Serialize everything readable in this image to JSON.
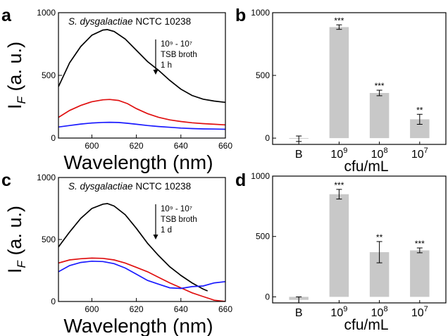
{
  "figure": {
    "panel_letters": [
      "a",
      "b",
      "c",
      "d"
    ]
  },
  "chart_data": [
    {
      "panel": "a",
      "type": "line",
      "title": "",
      "annotation_species": "S. dysgalactiae",
      "annotation_strain": "NCTC 10238",
      "legend_text": [
        "10⁹ - 10⁷",
        "TSB broth",
        "1 h"
      ],
      "xlabel": "Wavelength (nm)",
      "ylabel_main": "I",
      "ylabel_sub": "F",
      "ylabel_rest": " (a. u.)",
      "xlim": [
        585,
        660
      ],
      "ylim": [
        0,
        1000
      ],
      "xticks": [
        600,
        620,
        640,
        660
      ],
      "yticks": [
        0,
        500,
        1000
      ],
      "series": [
        {
          "color": "#000000",
          "x": [
            585,
            590,
            595,
            600,
            605,
            607,
            610,
            615,
            620,
            625,
            630,
            635,
            640,
            645,
            650,
            655,
            660
          ],
          "y": [
            410,
            600,
            730,
            820,
            862,
            865,
            850,
            790,
            700,
            610,
            540,
            460,
            390,
            340,
            310,
            295,
            285
          ]
        },
        {
          "color": "#e01010",
          "x": [
            585,
            590,
            595,
            600,
            605,
            608,
            612,
            616,
            620,
            625,
            630,
            635,
            640,
            645,
            650,
            655,
            660
          ],
          "y": [
            165,
            220,
            260,
            290,
            305,
            308,
            300,
            275,
            235,
            195,
            165,
            145,
            132,
            122,
            115,
            110,
            105
          ]
        },
        {
          "color": "#1a1aff",
          "x": [
            585,
            590,
            595,
            600,
            605,
            608,
            612,
            616,
            620,
            625,
            630,
            635,
            640,
            645,
            650,
            655,
            660
          ],
          "y": [
            88,
            100,
            112,
            120,
            125,
            126,
            124,
            118,
            110,
            100,
            92,
            86,
            80,
            76,
            73,
            72,
            70
          ]
        }
      ]
    },
    {
      "panel": "b",
      "type": "bar",
      "title": "",
      "xlabel": "cfu/mL",
      "ylabel": "",
      "ylim": [
        -50,
        1000
      ],
      "yticks": [
        0,
        500,
        1000
      ],
      "categories": [
        {
          "base": "B",
          "exp": ""
        },
        {
          "base": "10",
          "exp": "9"
        },
        {
          "base": "10",
          "exp": "8"
        },
        {
          "base": "10",
          "exp": "7"
        }
      ],
      "values": [
        -5,
        885,
        360,
        150
      ],
      "errors": [
        22,
        18,
        22,
        40
      ],
      "significance": [
        "",
        "***",
        "***",
        "**"
      ]
    },
    {
      "panel": "c",
      "type": "line",
      "title": "",
      "annotation_species": "S. dysgalactiae",
      "annotation_strain": "NCTC 10238",
      "legend_text": [
        "10⁹ - 10⁷",
        "TSB broth",
        "1 d"
      ],
      "xlabel": "Wavelength (nm)",
      "ylabel_main": "I",
      "ylabel_sub": "F",
      "ylabel_rest": " (a. u.)",
      "xlim": [
        585,
        660
      ],
      "ylim": [
        0,
        1000
      ],
      "xticks": [
        600,
        620,
        640,
        660
      ],
      "yticks": [
        0,
        500,
        1000
      ],
      "series": [
        {
          "color": "#000000",
          "x": [
            585,
            590,
            595,
            600,
            605,
            607,
            610,
            615,
            620,
            625,
            630,
            635,
            640,
            645,
            650,
            652
          ],
          "y": [
            440,
            560,
            670,
            750,
            785,
            790,
            770,
            700,
            590,
            470,
            370,
            280,
            210,
            150,
            100,
            85
          ]
        },
        {
          "color": "#e01010",
          "x": [
            585,
            590,
            595,
            600,
            605,
            610,
            615,
            620,
            625,
            630,
            635,
            640,
            645,
            650,
            655,
            660
          ],
          "y": [
            310,
            335,
            345,
            350,
            348,
            335,
            310,
            275,
            240,
            195,
            150,
            110,
            70,
            40,
            10,
            0
          ]
        },
        {
          "color": "#1a1aff",
          "x": [
            585,
            590,
            595,
            600,
            605,
            610,
            615,
            620,
            625,
            630,
            635,
            640,
            645,
            650,
            655,
            660
          ],
          "y": [
            240,
            290,
            315,
            325,
            322,
            305,
            270,
            220,
            170,
            140,
            110,
            105,
            120,
            125,
            150,
            160
          ]
        }
      ]
    },
    {
      "panel": "d",
      "type": "bar",
      "title": "",
      "xlabel": "cfu/mL",
      "ylabel": "",
      "ylim": [
        -50,
        1000
      ],
      "yticks": [
        0,
        500,
        1000
      ],
      "categories": [
        {
          "base": "B",
          "exp": ""
        },
        {
          "base": "10",
          "exp": "9"
        },
        {
          "base": "10",
          "exp": "8"
        },
        {
          "base": "10",
          "exp": "7"
        }
      ],
      "values": [
        -25,
        850,
        370,
        385
      ],
      "errors": [
        25,
        40,
        88,
        20
      ],
      "significance": [
        "",
        "***",
        "**",
        "***"
      ]
    }
  ]
}
